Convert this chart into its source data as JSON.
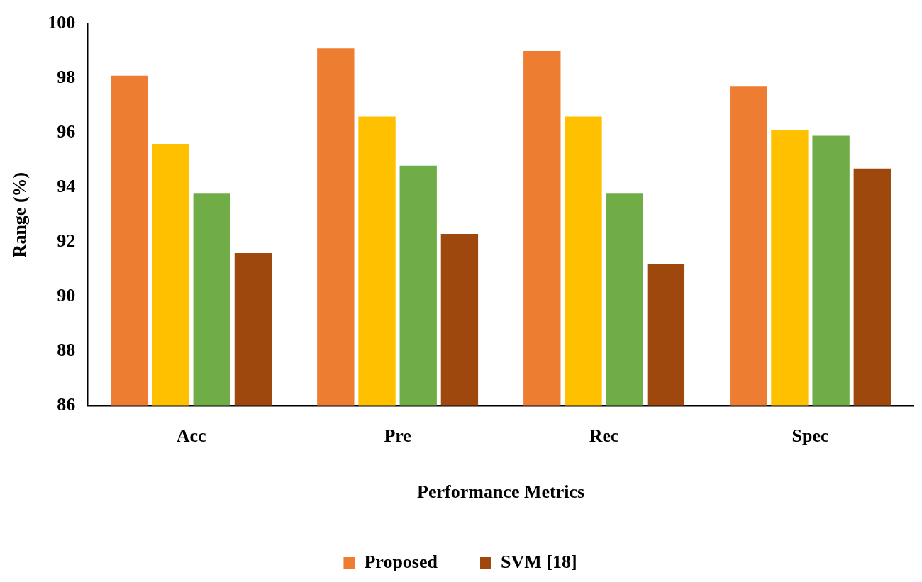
{
  "chart_data": {
    "type": "bar",
    "xlabel": "Performance Metrics",
    "ylabel": "Range (%)",
    "categories": [
      "Acc",
      "Pre",
      "Rec",
      "Spec"
    ],
    "series": [
      {
        "name": "Proposed",
        "color": "#ed7d31",
        "values": [
          98.1,
          99.1,
          99.0,
          97.7
        ]
      },
      {
        "color": "#ffc000",
        "values": [
          95.6,
          96.6,
          96.6,
          96.1
        ]
      },
      {
        "color": "#70ad47",
        "values": [
          93.8,
          94.8,
          93.8,
          95.9
        ]
      },
      {
        "name": "SVM [18]",
        "color": "#9e480e",
        "values": [
          91.6,
          92.3,
          91.2,
          94.7
        ]
      }
    ],
    "ylim": [
      86,
      100
    ],
    "yticks": [
      86,
      88,
      90,
      92,
      94,
      96,
      98,
      100
    ],
    "grid": false,
    "legend": "bottom"
  }
}
